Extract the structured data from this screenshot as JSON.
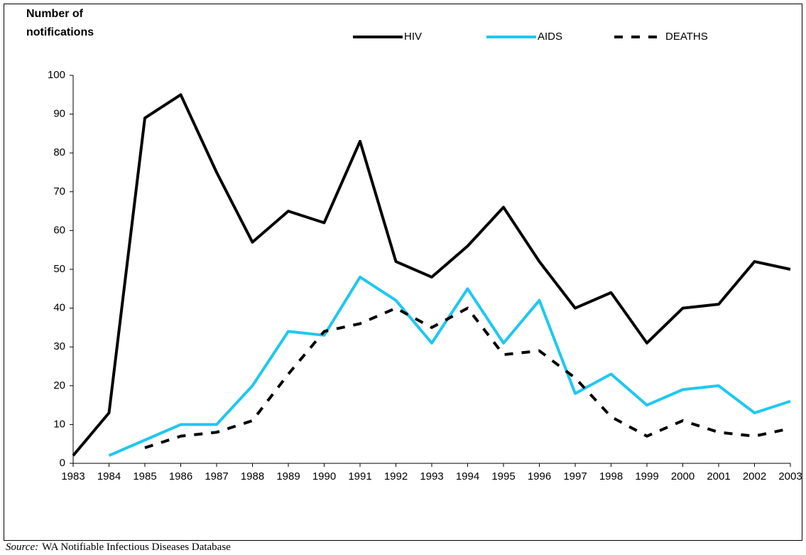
{
  "chart_data": {
    "type": "line",
    "ylabel_lines": [
      "Number of",
      "notifications"
    ],
    "categories": [
      "1983",
      "1984",
      "1985",
      "1986",
      "1987",
      "1988",
      "1989",
      "1990",
      "1991",
      "1992",
      "1993",
      "1994",
      "1995",
      "1996",
      "1997",
      "1998",
      "1999",
      "2000",
      "2001",
      "2002",
      "2003"
    ],
    "series": [
      {
        "name": "HIV",
        "color": "#000000",
        "dash": false,
        "values": [
          2,
          13,
          89,
          95,
          75,
          57,
          65,
          62,
          83,
          52,
          48,
          56,
          66,
          52,
          40,
          44,
          31,
          40,
          41,
          52,
          50
        ]
      },
      {
        "name": "AIDS",
        "color": "#1ec8f0",
        "dash": false,
        "values": [
          null,
          2,
          6,
          10,
          10,
          20,
          34,
          33,
          48,
          42,
          31,
          45,
          31,
          42,
          18,
          23,
          15,
          19,
          20,
          13,
          16
        ]
      },
      {
        "name": "DEATHS",
        "color": "#000000",
        "dash": true,
        "values": [
          null,
          null,
          4,
          7,
          8,
          11,
          23,
          34,
          36,
          40,
          35,
          40,
          28,
          29,
          22,
          12,
          7,
          11,
          8,
          7,
          9
        ]
      }
    ],
    "ylim": [
      0,
      100
    ],
    "yticks": [
      0,
      10,
      20,
      30,
      40,
      50,
      60,
      70,
      80,
      90,
      100
    ],
    "source": {
      "label": "Source:",
      "text": "WA Notifiable Infectious Diseases Database"
    }
  }
}
